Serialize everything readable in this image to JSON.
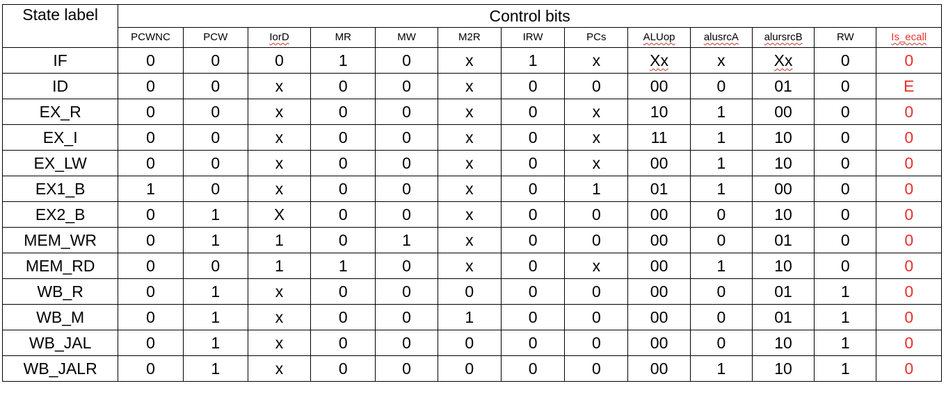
{
  "table": {
    "state_label_header": "State label",
    "group_header": "Control bits",
    "columns": [
      "PCWNC",
      "PCW",
      "IorD",
      "MR",
      "MW",
      "M2R",
      "IRW",
      "PCs",
      "ALUop",
      "alusrcA",
      "alursrcB",
      "RW",
      "Is_ecall"
    ],
    "spellcheck_columns": [
      "IorD",
      "ALUop",
      "alusrcA",
      "alursrcB",
      "Is_ecall"
    ],
    "highlight_column": "Is_ecall",
    "highlight_color": "#e8302a",
    "rows": [
      {
        "state": "IF",
        "values": [
          "0",
          "0",
          "0",
          "1",
          "0",
          "x",
          "1",
          "x",
          "Xx",
          "x",
          "Xx",
          "0",
          "0"
        ]
      },
      {
        "state": "ID",
        "values": [
          "0",
          "0",
          "x",
          "0",
          "0",
          "x",
          "0",
          "0",
          "00",
          "0",
          "01",
          "0",
          "E"
        ]
      },
      {
        "state": "EX_R",
        "values": [
          "0",
          "0",
          "x",
          "0",
          "0",
          "x",
          "0",
          "x",
          "10",
          "1",
          "00",
          "0",
          "0"
        ]
      },
      {
        "state": "EX_I",
        "values": [
          "0",
          "0",
          "x",
          "0",
          "0",
          "x",
          "0",
          "x",
          "11",
          "1",
          "10",
          "0",
          "0"
        ]
      },
      {
        "state": "EX_LW",
        "values": [
          "0",
          "0",
          "x",
          "0",
          "0",
          "x",
          "0",
          "x",
          "00",
          "1",
          "10",
          "0",
          "0"
        ]
      },
      {
        "state": "EX1_B",
        "values": [
          "1",
          "0",
          "x",
          "0",
          "0",
          "x",
          "0",
          "1",
          "01",
          "1",
          "00",
          "0",
          "0"
        ]
      },
      {
        "state": "EX2_B",
        "values": [
          "0",
          "1",
          "X",
          "0",
          "0",
          "x",
          "0",
          "0",
          "00",
          "0",
          "10",
          "0",
          "0"
        ]
      },
      {
        "state": "MEM_WR",
        "values": [
          "0",
          "1",
          "1",
          "0",
          "1",
          "x",
          "0",
          "0",
          "00",
          "0",
          "01",
          "0",
          "0"
        ]
      },
      {
        "state": "MEM_RD",
        "values": [
          "0",
          "0",
          "1",
          "1",
          "0",
          "x",
          "0",
          "x",
          "00",
          "1",
          "10",
          "0",
          "0"
        ]
      },
      {
        "state": "WB_R",
        "values": [
          "0",
          "1",
          "x",
          "0",
          "0",
          "0",
          "0",
          "0",
          "00",
          "0",
          "01",
          "1",
          "0"
        ]
      },
      {
        "state": "WB_M",
        "values": [
          "0",
          "1",
          "x",
          "0",
          "0",
          "1",
          "0",
          "0",
          "00",
          "0",
          "01",
          "1",
          "0"
        ]
      },
      {
        "state": "WB_JAL",
        "values": [
          "0",
          "1",
          "x",
          "0",
          "0",
          "0",
          "0",
          "0",
          "00",
          "0",
          "10",
          "1",
          "0"
        ]
      },
      {
        "state": "WB_JALR",
        "values": [
          "0",
          "1",
          "x",
          "0",
          "0",
          "0",
          "0",
          "0",
          "00",
          "1",
          "10",
          "1",
          "0"
        ]
      }
    ]
  }
}
